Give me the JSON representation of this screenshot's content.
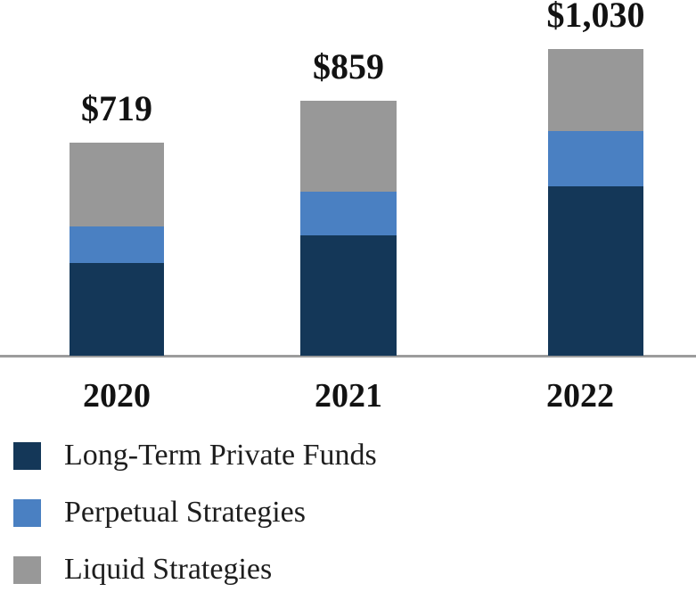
{
  "chart_data": {
    "type": "bar",
    "stacked": true,
    "title": "",
    "categories": [
      "2020",
      "2021",
      "2022"
    ],
    "series": [
      {
        "name": "Long-Term Private Funds",
        "color": "#143758",
        "values": [
          313,
          406,
          569
        ]
      },
      {
        "name": "Perpetual Strategies",
        "color": "#4A80C2",
        "values": [
          124,
          147,
          186
        ]
      },
      {
        "name": "Liquid Strategies",
        "color": "#989898",
        "values": [
          282,
          306,
          275
        ]
      }
    ],
    "totals": [
      719,
      859,
      1030
    ],
    "total_labels": [
      "$719",
      "$859",
      "$1,030"
    ],
    "segment_values_are_estimates": true,
    "grid": false,
    "legend_position": "bottom-left",
    "axis_line_color": "#9C9C9C",
    "label_color": "#121212",
    "background_color": "#FFFFFF"
  },
  "legend": {
    "items": [
      {
        "label": "Long-Term Private Funds",
        "color": "#143758"
      },
      {
        "label": "Perpetual Strategies",
        "color": "#4A80C2"
      },
      {
        "label": "Liquid Strategies",
        "color": "#989898"
      }
    ]
  }
}
